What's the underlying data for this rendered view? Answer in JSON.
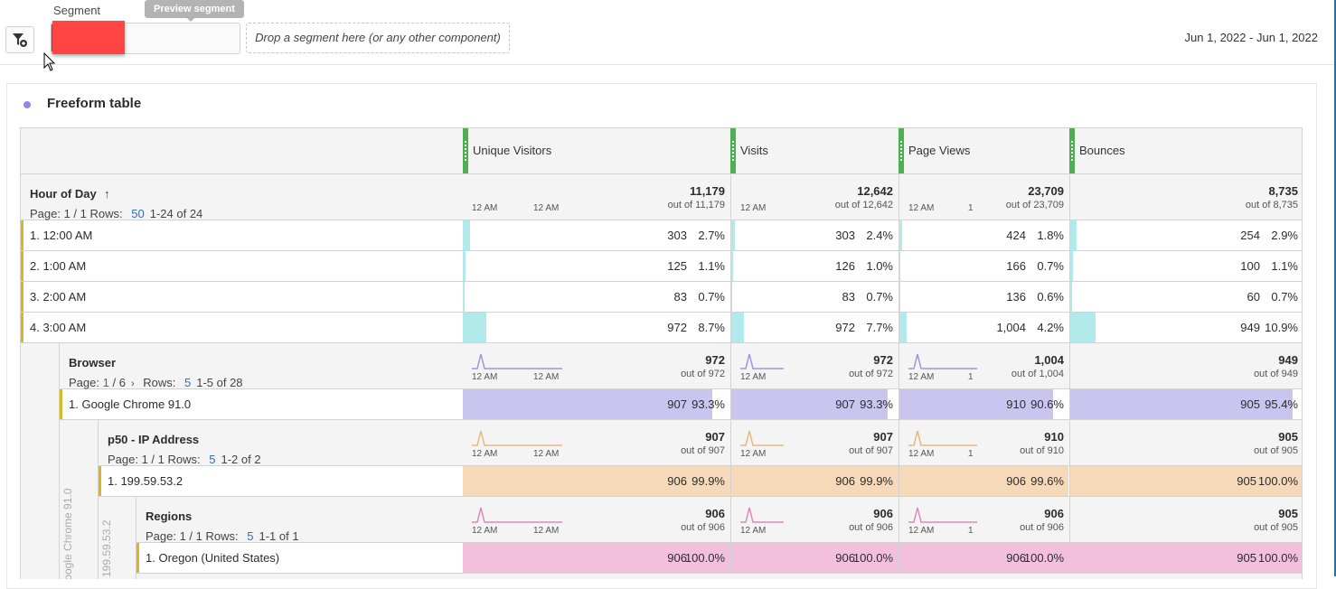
{
  "header": {
    "segment_label": "Segment",
    "tooltip": "Preview segment",
    "drop_zone": "Drop a segment here (or any other component)",
    "date_range": "Jun 1, 2022 - Jun 1, 2022"
  },
  "panel": {
    "title": "Freeform table",
    "dot_color": "#8f89e8"
  },
  "columns": [
    {
      "label": "Unique Visitors"
    },
    {
      "label": "Visits"
    },
    {
      "label": "Page Views"
    },
    {
      "label": "Bounces"
    }
  ],
  "dim1": {
    "title": "Hour of Day",
    "sort_icon": "arrow-up-icon",
    "page": "Page: 1 / 1",
    "rows_label": "Rows:",
    "rows": "50",
    "range": "1-24 of 24",
    "totals": [
      {
        "v": "11,179",
        "o": "out of 11,179"
      },
      {
        "v": "12,642",
        "o": "out of 12,642"
      },
      {
        "v": "23,709",
        "o": "out of 23,709"
      },
      {
        "v": "8,735",
        "o": "out of 8,735"
      }
    ],
    "spark_axis": [
      [
        "12 AM",
        "12 AM"
      ],
      [
        "12 AM",
        ""
      ],
      [
        "12 AM",
        "1"
      ],
      [
        "",
        ""
      ]
    ],
    "items": [
      {
        "label": "1.  12:00 AM",
        "vals": [
          [
            "303",
            "2.7%"
          ],
          [
            "303",
            "2.4%"
          ],
          [
            "424",
            "1.8%"
          ],
          [
            "254",
            "2.9%"
          ]
        ],
        "pct": [
          2.7,
          2.4,
          1.8,
          2.9
        ]
      },
      {
        "label": "2.  1:00 AM",
        "vals": [
          [
            "125",
            "1.1%"
          ],
          [
            "126",
            "1.0%"
          ],
          [
            "166",
            "0.7%"
          ],
          [
            "100",
            "1.1%"
          ]
        ],
        "pct": [
          1.1,
          1.0,
          0.7,
          1.1
        ]
      },
      {
        "label": "3.  2:00 AM",
        "vals": [
          [
            "83",
            "0.7%"
          ],
          [
            "83",
            "0.7%"
          ],
          [
            "136",
            "0.6%"
          ],
          [
            "60",
            "0.7%"
          ]
        ],
        "pct": [
          0.7,
          0.7,
          0.6,
          0.7
        ]
      },
      {
        "label": "4.  3:00 AM",
        "vals": [
          [
            "972",
            "8.7%"
          ],
          [
            "972",
            "7.7%"
          ],
          [
            "1,004",
            "4.2%"
          ],
          [
            "949",
            "10.9%"
          ]
        ],
        "pct": [
          8.7,
          7.7,
          4.2,
          10.9
        ]
      }
    ]
  },
  "dim2": {
    "title": "Browser",
    "page_prefix": "Page:",
    "page_cur": "1",
    "page_rest": "/ 6",
    "next_icon": "chevron-right-icon",
    "rows_label": "Rows:",
    "rows": "5",
    "range": "1-5 of 28",
    "totals": [
      {
        "v": "972",
        "o": "out of 972"
      },
      {
        "v": "972",
        "o": "out of 972"
      },
      {
        "v": "1,004",
        "o": "out of 1,004"
      },
      {
        "v": "949",
        "o": "out of 949"
      }
    ],
    "spark_axis": [
      [
        "12 AM",
        "12 AM"
      ],
      [
        "12 AM",
        ""
      ],
      [
        "12 AM",
        "1"
      ],
      [
        "",
        ""
      ]
    ],
    "item": {
      "label": "1.  Google Chrome 91.0",
      "vals": [
        [
          "907",
          "93.3%"
        ],
        [
          "907",
          "93.3%"
        ],
        [
          "910",
          "90.6%"
        ],
        [
          "905",
          "95.4%"
        ]
      ],
      "pct": [
        93.3,
        93.3,
        90.6,
        95.4
      ]
    },
    "vertical": "Google Chrome 91.0",
    "color": "#c9c5ee",
    "line": "#9d95e0"
  },
  "dim3": {
    "title": "p50 - IP Address",
    "page": "Page: 1 / 1",
    "rows_label": "Rows:",
    "rows": "5",
    "range": "1-2 of 2",
    "totals": [
      {
        "v": "907",
        "o": "out of 907"
      },
      {
        "v": "907",
        "o": "out of 907"
      },
      {
        "v": "910",
        "o": "out of 910"
      },
      {
        "v": "905",
        "o": "out of 905"
      }
    ],
    "spark_axis": [
      [
        "12 AM",
        "12 AM"
      ],
      [
        "12 AM",
        ""
      ],
      [
        "12 AM",
        "1"
      ],
      [
        "",
        ""
      ]
    ],
    "item": {
      "label": "1.  199.59.53.2",
      "vals": [
        [
          "906",
          "99.9%"
        ],
        [
          "906",
          "99.9%"
        ],
        [
          "906",
          "99.6%"
        ],
        [
          "905",
          "100.0%"
        ]
      ],
      "pct": [
        99.9,
        99.9,
        99.6,
        100
      ]
    },
    "vertical": "199.59.53.2",
    "color": "#f6d9b8",
    "line": "#eab67e"
  },
  "dim4": {
    "title": "Regions",
    "page": "Page: 1 / 1",
    "rows_label": "Rows:",
    "rows": "5",
    "range": "1-1 of 1",
    "totals": [
      {
        "v": "906",
        "o": "out of 906"
      },
      {
        "v": "906",
        "o": "out of 906"
      },
      {
        "v": "906",
        "o": "out of 906"
      },
      {
        "v": "905",
        "o": "out of 905"
      }
    ],
    "spark_axis": [
      [
        "12 AM",
        "12 AM"
      ],
      [
        "12 AM",
        ""
      ],
      [
        "12 AM",
        "1"
      ],
      [
        "",
        ""
      ]
    ],
    "item": {
      "label": "1.  Oregon (United States)",
      "vals": [
        [
          "906",
          "100.0%"
        ],
        [
          "906",
          "100.0%"
        ],
        [
          "906",
          "100.0%"
        ],
        [
          "905",
          "100.0%"
        ]
      ],
      "pct": [
        100,
        100,
        100,
        100
      ]
    },
    "color": "#f2c0dd",
    "line": "#df88bb"
  }
}
